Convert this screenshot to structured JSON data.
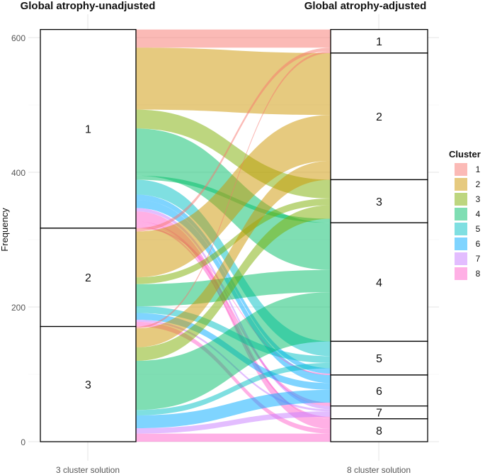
{
  "chart_data": {
    "type": "alluvial",
    "ylabel": "Frequency",
    "ylim": [
      0,
      625
    ],
    "y_ticks": [
      0,
      200,
      400,
      600
    ],
    "axes": [
      {
        "title": "Global atrophy-unadjusted",
        "tick_label": "3 cluster solution",
        "strata": [
          "1",
          "2",
          "3"
        ]
      },
      {
        "title": "Global atrophy-adjusted",
        "tick_label": "8 cluster solution",
        "strata": [
          "1",
          "2",
          "3",
          "4",
          "5",
          "6",
          "7",
          "8"
        ]
      }
    ],
    "legend": {
      "title": "Cluster",
      "entries": [
        "1",
        "2",
        "3",
        "4",
        "5",
        "6",
        "7",
        "8"
      ],
      "colors": [
        "#F8766D",
        "#CD9600",
        "#7CAE00",
        "#00BE67",
        "#00BFC4",
        "#00A9FF",
        "#C77CFF",
        "#FF61CC"
      ]
    },
    "flows": [
      {
        "cluster": "1",
        "from": "1",
        "to": "1",
        "value": 27
      },
      {
        "cluster": "2",
        "from": "1",
        "to": "2",
        "value": 92
      },
      {
        "cluster": "3",
        "from": "1",
        "to": "3",
        "value": 28
      },
      {
        "cluster": "4",
        "from": "1",
        "to": "3",
        "value": 6
      },
      {
        "cluster": "4",
        "from": "1",
        "to": "4",
        "value": 70
      },
      {
        "cluster": "5",
        "from": "1",
        "to": "5",
        "value": 22
      },
      {
        "cluster": "6",
        "from": "1",
        "to": "5",
        "value": 8
      },
      {
        "cluster": "6",
        "from": "1",
        "to": "6",
        "value": 12
      },
      {
        "cluster": "7",
        "from": "1",
        "to": "7",
        "value": 5
      },
      {
        "cluster": "8",
        "from": "1",
        "to": "8",
        "value": 15
      },
      {
        "cluster": "8",
        "from": "1",
        "to": "6",
        "value": 5
      },
      {
        "cluster": "8",
        "from": "1",
        "to": "7",
        "value": 3
      },
      {
        "cluster": "8",
        "from": "1",
        "to": "5",
        "value": 2
      },
      {
        "cluster": "2",
        "from": "2",
        "to": "2",
        "value": 68
      },
      {
        "cluster": "3",
        "from": "2",
        "to": "3",
        "value": 10
      },
      {
        "cluster": "4",
        "from": "2",
        "to": "4",
        "value": 33
      },
      {
        "cluster": "1",
        "from": "2",
        "to": "1",
        "value": 5
      },
      {
        "cluster": "5",
        "from": "2",
        "to": "5",
        "value": 10
      },
      {
        "cluster": "6",
        "from": "2",
        "to": "6",
        "value": 10
      },
      {
        "cluster": "7",
        "from": "2",
        "to": "7",
        "value": 3
      },
      {
        "cluster": "8",
        "from": "2",
        "to": "8",
        "value": 7
      },
      {
        "cluster": "1",
        "from": "3",
        "to": "1",
        "value": 3
      },
      {
        "cluster": "2",
        "from": "3",
        "to": "2",
        "value": 28
      },
      {
        "cluster": "3",
        "from": "3",
        "to": "3",
        "value": 20
      },
      {
        "cluster": "4",
        "from": "3",
        "to": "4",
        "value": 73
      },
      {
        "cluster": "5",
        "from": "3",
        "to": "5",
        "value": 8
      },
      {
        "cluster": "6",
        "from": "3",
        "to": "6",
        "value": 19
      },
      {
        "cluster": "7",
        "from": "3",
        "to": "7",
        "value": 8
      },
      {
        "cluster": "8",
        "from": "3",
        "to": "8",
        "value": 12
      }
    ]
  }
}
